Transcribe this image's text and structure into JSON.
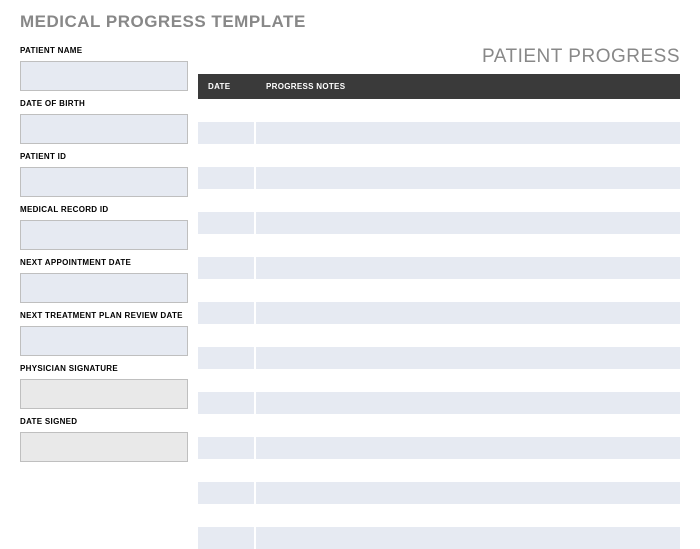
{
  "page_title": "MEDICAL PROGRESS TEMPLATE",
  "section_title": "PATIENT PROGRESS",
  "colors": {
    "title_gray": "#888888",
    "header_bg": "#3a3a3a",
    "header_text": "#ffffff",
    "field_blue": "#e6eaf2",
    "field_gray": "#e9e9e9",
    "border": "#bfbfbf",
    "row_alt": "#e6eaf2",
    "row_base": "#ffffff"
  },
  "sidebar_fields": [
    {
      "label": "PATIENT NAME",
      "style": "blue",
      "value": ""
    },
    {
      "label": "DATE OF BIRTH",
      "style": "blue",
      "value": ""
    },
    {
      "label": "PATIENT ID",
      "style": "blue",
      "value": ""
    },
    {
      "label": "MEDICAL RECORD ID",
      "style": "blue",
      "value": ""
    },
    {
      "label": "NEXT APPOINTMENT DATE",
      "style": "blue",
      "value": ""
    },
    {
      "label": "NEXT TREATMENT PLAN REVIEW DATE",
      "style": "blue",
      "value": ""
    },
    {
      "label": "PHYSICIAN SIGNATURE",
      "style": "gray",
      "value": ""
    },
    {
      "label": "DATE SIGNED",
      "style": "gray",
      "value": ""
    }
  ],
  "table": {
    "columns": [
      "DATE",
      "PROGRESS NOTES"
    ],
    "column_widths": [
      "58px",
      "auto"
    ],
    "row_count": 20,
    "rows": [
      {
        "date": "",
        "notes": ""
      },
      {
        "date": "",
        "notes": ""
      },
      {
        "date": "",
        "notes": ""
      },
      {
        "date": "",
        "notes": ""
      },
      {
        "date": "",
        "notes": ""
      },
      {
        "date": "",
        "notes": ""
      },
      {
        "date": "",
        "notes": ""
      },
      {
        "date": "",
        "notes": ""
      },
      {
        "date": "",
        "notes": ""
      },
      {
        "date": "",
        "notes": ""
      },
      {
        "date": "",
        "notes": ""
      },
      {
        "date": "",
        "notes": ""
      },
      {
        "date": "",
        "notes": ""
      },
      {
        "date": "",
        "notes": ""
      },
      {
        "date": "",
        "notes": ""
      },
      {
        "date": "",
        "notes": ""
      },
      {
        "date": "",
        "notes": ""
      },
      {
        "date": "",
        "notes": ""
      },
      {
        "date": "",
        "notes": ""
      },
      {
        "date": "",
        "notes": ""
      }
    ]
  }
}
